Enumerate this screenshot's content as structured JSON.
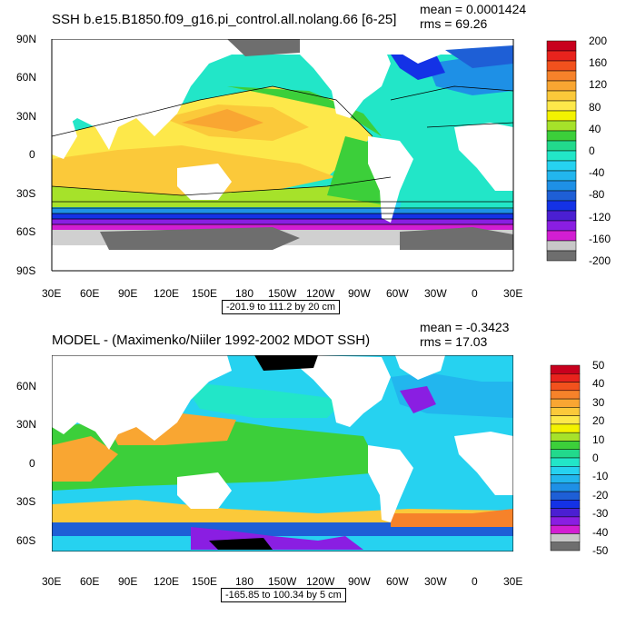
{
  "panels": [
    {
      "title": "SSH b.e15.B1850.f09_g16.pi_control.all.nolang.66 [6-25]",
      "mean_text": "mean = 0.0001424",
      "rms_text": "rms = 69.26",
      "range_text": "-201.9 to 111.2 by 20 cm",
      "y_ticks": [
        "90N",
        "60N",
        "30N",
        "0",
        "30S",
        "60S",
        "90S"
      ],
      "x_ticks": [
        "30E",
        "60E",
        "90E",
        "120E",
        "150E",
        "180",
        "150W",
        "120W",
        "90W",
        "60W",
        "30W",
        "0",
        "30E"
      ],
      "colorbar": {
        "labels": [
          "200",
          "160",
          "120",
          "80",
          "40",
          "0",
          "-40",
          "-80",
          "-120",
          "-160",
          "-200"
        ],
        "label_values": [
          200,
          160,
          120,
          80,
          40,
          0,
          -40,
          -80,
          -120,
          -160,
          -200
        ],
        "colors": [
          "#c8001e",
          "#e8231d",
          "#f2511d",
          "#f6822a",
          "#f9a632",
          "#fbc93a",
          "#fde84a",
          "#f3f200",
          "#a6e22a",
          "#3ccf3a",
          "#22d98c",
          "#22e6c8",
          "#26d2f0",
          "#22b6ee",
          "#1e90e6",
          "#1e5fd6",
          "#1432e6",
          "#4b1fd2",
          "#8a1ee2",
          "#d21ed2",
          "#c8c8c8",
          "#6e6e6e"
        ]
      }
    },
    {
      "title": "MODEL - (Maximenko/Niiler 1992-2002 MDOT SSH)",
      "mean_text": "mean = -0.3423",
      "rms_text": "rms = 17.03",
      "range_text": "-165.85 to 100.34 by 5 cm",
      "y_ticks": [
        "60N",
        "30N",
        "0",
        "30S",
        "60S"
      ],
      "x_ticks": [
        "30E",
        "60E",
        "90E",
        "120E",
        "150E",
        "180",
        "150W",
        "120W",
        "90W",
        "60W",
        "30W",
        "0",
        "30E"
      ],
      "colorbar": {
        "labels": [
          "50",
          "40",
          "30",
          "20",
          "10",
          "0",
          "-10",
          "-20",
          "-30",
          "-40",
          "-50"
        ],
        "label_values": [
          50,
          40,
          30,
          20,
          10,
          0,
          -10,
          -20,
          -30,
          -40,
          -50
        ],
        "colors": [
          "#c8001e",
          "#e8231d",
          "#f2511d",
          "#f6822a",
          "#f9a632",
          "#fbc93a",
          "#fde84a",
          "#f3f200",
          "#a6e22a",
          "#3ccf3a",
          "#22d98c",
          "#22e6c8",
          "#26d2f0",
          "#22b6ee",
          "#1e90e6",
          "#1e5fd6",
          "#1432e6",
          "#4b1fd2",
          "#8a1ee2",
          "#d21ed2",
          "#c8c8c8",
          "#6e6e6e"
        ]
      }
    }
  ],
  "map_colors": {
    "land": "#ffffff",
    "sea_ice": "#d0d0d0",
    "dark_ice": "#6e6e6e",
    "black": "#000000"
  }
}
